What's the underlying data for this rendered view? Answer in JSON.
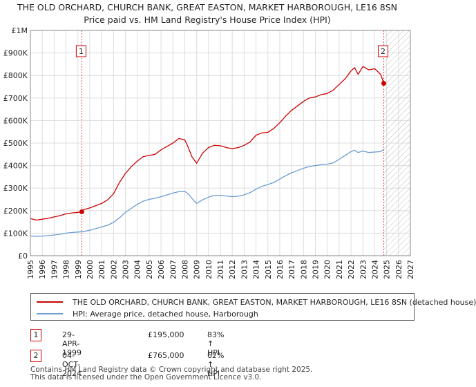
{
  "chart_data": {
    "type": "line",
    "title": "THE OLD ORCHARD, CHURCH BANK, GREAT EASTON, MARKET HARBOROUGH, LE16 8SN",
    "subtitle": "Price paid vs. HM Land Registry's House Price Index (HPI)",
    "xlim": [
      1995,
      2027
    ],
    "ylim": [
      0,
      1000000
    ],
    "yticks": [
      {
        "value": 0,
        "label": "£0"
      },
      {
        "value": 100000,
        "label": "£100K"
      },
      {
        "value": 200000,
        "label": "£200K"
      },
      {
        "value": 300000,
        "label": "£300K"
      },
      {
        "value": 400000,
        "label": "£400K"
      },
      {
        "value": 500000,
        "label": "£500K"
      },
      {
        "value": 600000,
        "label": "£600K"
      },
      {
        "value": 700000,
        "label": "£700K"
      },
      {
        "value": 800000,
        "label": "£800K"
      },
      {
        "value": 900000,
        "label": "£900K"
      },
      {
        "value": 1000000,
        "label": "£1M"
      }
    ],
    "xticks": [
      "1995",
      "1996",
      "1997",
      "1998",
      "1999",
      "2000",
      "2001",
      "2002",
      "2003",
      "2004",
      "2005",
      "2006",
      "2007",
      "2008",
      "2009",
      "2010",
      "2011",
      "2012",
      "2013",
      "2014",
      "2015",
      "2016",
      "2017",
      "2018",
      "2019",
      "2020",
      "2021",
      "2022",
      "2023",
      "2024",
      "2025",
      "2026",
      "2027"
    ],
    "grid": true,
    "hatch_from": 2024.76,
    "series": [
      {
        "name": "THE OLD ORCHARD, CHURCH BANK, GREAT EASTON, MARKET HARBOROUGH, LE16 8SN (detached house)",
        "color": "#cc0000",
        "x": [
          1995,
          1995.5,
          1996,
          1996.5,
          1997,
          1997.5,
          1998,
          1998.5,
          1999,
          1999.33,
          1999.5,
          2000,
          2000.5,
          2001,
          2001.5,
          2002,
          2002.5,
          2003,
          2003.5,
          2004,
          2004.5,
          2005,
          2005.5,
          2006,
          2006.5,
          2007,
          2007.5,
          2008,
          2008.3,
          2008.6,
          2009,
          2009.5,
          2010,
          2010.5,
          2011,
          2011.5,
          2012,
          2012.5,
          2013,
          2013.5,
          2014,
          2014.5,
          2015,
          2015.5,
          2016,
          2016.5,
          2017,
          2017.5,
          2018,
          2018.5,
          2019,
          2019.5,
          2020,
          2020.5,
          2021,
          2021.5,
          2022,
          2022.3,
          2022.6,
          2023,
          2023.5,
          2024,
          2024.5,
          2024.76
        ],
        "values": [
          165000,
          158000,
          162000,
          166000,
          172000,
          178000,
          186000,
          190000,
          192000,
          195000,
          205000,
          212000,
          222000,
          232000,
          248000,
          275000,
          325000,
          365000,
          395000,
          420000,
          440000,
          445000,
          450000,
          470000,
          485000,
          500000,
          520000,
          515000,
          480000,
          440000,
          410000,
          455000,
          480000,
          490000,
          488000,
          480000,
          475000,
          480000,
          490000,
          505000,
          535000,
          545000,
          548000,
          565000,
          590000,
          620000,
          645000,
          665000,
          685000,
          700000,
          705000,
          715000,
          720000,
          735000,
          760000,
          785000,
          820000,
          835000,
          805000,
          840000,
          825000,
          830000,
          805000,
          765000
        ]
      },
      {
        "name": "HPI: Average price, detached house, Harborough",
        "color": "#6a9bd1",
        "x": [
          1995,
          1995.5,
          1996,
          1996.5,
          1997,
          1997.5,
          1998,
          1998.5,
          1999,
          1999.5,
          2000,
          2000.5,
          2001,
          2001.5,
          2002,
          2002.5,
          2003,
          2003.5,
          2004,
          2004.5,
          2005,
          2005.5,
          2006,
          2006.5,
          2007,
          2007.5,
          2008,
          2008.3,
          2008.6,
          2009,
          2009.5,
          2010,
          2010.5,
          2011,
          2011.5,
          2012,
          2012.5,
          2013,
          2013.5,
          2014,
          2014.5,
          2015,
          2015.5,
          2016,
          2016.5,
          2017,
          2017.5,
          2018,
          2018.5,
          2019,
          2019.5,
          2020,
          2020.5,
          2021,
          2021.5,
          2022,
          2022.3,
          2022.6,
          2023,
          2023.5,
          2024,
          2024.5,
          2024.76
        ],
        "values": [
          88000,
          86000,
          87000,
          89000,
          92000,
          95000,
          100000,
          103000,
          105000,
          108000,
          113000,
          120000,
          128000,
          135000,
          148000,
          168000,
          192000,
          210000,
          228000,
          242000,
          250000,
          255000,
          262000,
          270000,
          278000,
          284000,
          285000,
          275000,
          255000,
          232000,
          248000,
          260000,
          268000,
          268000,
          265000,
          262000,
          264000,
          270000,
          280000,
          295000,
          308000,
          316000,
          325000,
          340000,
          355000,
          368000,
          378000,
          388000,
          396000,
          400000,
          404000,
          406000,
          412000,
          428000,
          445000,
          462000,
          468000,
          458000,
          465000,
          458000,
          460000,
          462000,
          472000
        ]
      }
    ],
    "markers": [
      {
        "label": "1",
        "x": 1999.33,
        "y": 195000
      },
      {
        "label": "2",
        "x": 2024.76,
        "y": 765000
      }
    ]
  },
  "legend": {
    "property_label": "THE OLD ORCHARD, CHURCH BANK, GREAT EASTON, MARKET HARBOROUGH, LE16 8SN (detached house)",
    "hpi_label": "HPI: Average price, detached house, Harborough",
    "property_color": "#cc0000",
    "hpi_color": "#6a9bd1"
  },
  "transactions": [
    {
      "num": "1",
      "date": "29-APR-1999",
      "price": "£195,000",
      "hpi": "83% ↑ HPI"
    },
    {
      "num": "2",
      "date": "04-OCT-2024",
      "price": "£765,000",
      "hpi": "62% ↑ HPI"
    }
  ],
  "footer": {
    "line1": "Contains HM Land Registry data © Crown copyright and database right 2025.",
    "line2": "This data is licensed under the Open Government Licence v3.0."
  }
}
